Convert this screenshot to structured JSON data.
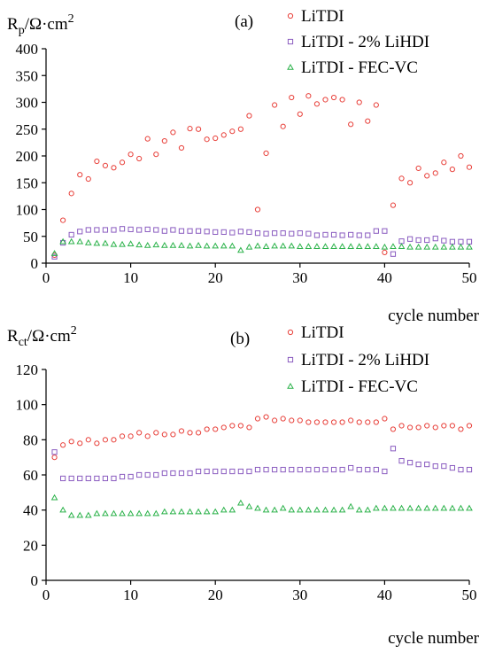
{
  "colors": {
    "LiTDI": "#e8403a",
    "LiTDI - 2% LiHDI": "#8a5cc0",
    "LiTDI - FEC-VC": "#2bb24a"
  },
  "chart_data": [
    {
      "type": "scatter",
      "panel_label": "(a)",
      "ylabel_base": "R",
      "ylabel_sub": "p",
      "ylabel_unit": "/Ω·cm",
      "ylabel_sup": "2",
      "xlabel": "cycle number",
      "xlim": [
        0,
        50
      ],
      "ylim": [
        0,
        400
      ],
      "xticks": [
        0,
        10,
        20,
        30,
        40,
        50
      ],
      "yticks": [
        0,
        50,
        100,
        150,
        200,
        250,
        300,
        350,
        400
      ],
      "series": [
        {
          "name": "LiTDI",
          "marker": "circle",
          "x": [
            1,
            2,
            3,
            4,
            5,
            6,
            7,
            8,
            9,
            10,
            11,
            12,
            13,
            14,
            15,
            16,
            17,
            18,
            19,
            20,
            21,
            22,
            23,
            24,
            25,
            26,
            27,
            28,
            29,
            30,
            31,
            32,
            33,
            34,
            35,
            36,
            37,
            38,
            39,
            40,
            41,
            42,
            43,
            44,
            45,
            46,
            47,
            48,
            49,
            50
          ],
          "y": [
            15,
            80,
            130,
            165,
            157,
            190,
            182,
            178,
            188,
            203,
            195,
            232,
            203,
            228,
            244,
            215,
            251,
            250,
            231,
            233,
            239,
            246,
            250,
            275,
            100,
            205,
            295,
            255,
            309,
            278,
            312,
            297,
            305,
            309,
            305,
            259,
            300,
            265,
            295,
            20,
            108,
            158,
            150,
            177,
            163,
            168,
            188,
            175,
            200,
            179
          ]
        },
        {
          "name": "LiTDI - 2% LiHDI",
          "marker": "square",
          "x": [
            1,
            2,
            3,
            4,
            5,
            6,
            7,
            8,
            9,
            10,
            11,
            12,
            13,
            14,
            15,
            16,
            17,
            18,
            19,
            20,
            21,
            22,
            23,
            24,
            25,
            26,
            27,
            28,
            29,
            30,
            31,
            32,
            33,
            34,
            35,
            36,
            37,
            38,
            39,
            40,
            41,
            42,
            43,
            44,
            45,
            46,
            47,
            48,
            49,
            50
          ],
          "y": [
            12,
            38,
            53,
            59,
            62,
            62,
            62,
            62,
            64,
            63,
            62,
            63,
            62,
            60,
            62,
            60,
            60,
            60,
            59,
            58,
            58,
            57,
            59,
            58,
            56,
            55,
            56,
            56,
            55,
            56,
            55,
            52,
            53,
            53,
            52,
            53,
            52,
            52,
            60,
            60,
            17,
            41,
            45,
            43,
            43,
            46,
            42,
            40,
            40,
            40
          ]
        },
        {
          "name": "LiTDI - FEC-VC",
          "marker": "triangle",
          "x": [
            1,
            2,
            3,
            4,
            5,
            6,
            7,
            8,
            9,
            10,
            11,
            12,
            13,
            14,
            15,
            16,
            17,
            18,
            19,
            20,
            21,
            22,
            23,
            24,
            25,
            26,
            27,
            28,
            29,
            30,
            31,
            32,
            33,
            34,
            35,
            36,
            37,
            38,
            39,
            40,
            41,
            42,
            43,
            44,
            45,
            46,
            47,
            48,
            49,
            50
          ],
          "y": [
            18,
            40,
            40,
            40,
            38,
            37,
            37,
            35,
            35,
            36,
            34,
            33,
            34,
            33,
            33,
            33,
            32,
            33,
            32,
            32,
            32,
            32,
            24,
            30,
            32,
            31,
            32,
            32,
            32,
            31,
            31,
            31,
            31,
            31,
            31,
            31,
            31,
            31,
            31,
            30,
            31,
            31,
            30,
            30,
            30,
            30,
            30,
            30,
            30,
            30
          ]
        }
      ]
    },
    {
      "type": "scatter",
      "panel_label": "(b)",
      "ylabel_base": "R",
      "ylabel_sub": "ct",
      "ylabel_unit": "/Ω·cm",
      "ylabel_sup": "2",
      "xlabel": "cycle number",
      "xlim": [
        0,
        50
      ],
      "ylim": [
        0,
        120
      ],
      "xticks": [
        0,
        10,
        20,
        30,
        40,
        50
      ],
      "yticks": [
        0,
        20,
        40,
        60,
        80,
        100,
        120
      ],
      "series": [
        {
          "name": "LiTDI",
          "marker": "circle",
          "x": [
            1,
            2,
            3,
            4,
            5,
            6,
            7,
            8,
            9,
            10,
            11,
            12,
            13,
            14,
            15,
            16,
            17,
            18,
            19,
            20,
            21,
            22,
            23,
            24,
            25,
            26,
            27,
            28,
            29,
            30,
            31,
            32,
            33,
            34,
            35,
            36,
            37,
            38,
            39,
            40,
            41,
            42,
            43,
            44,
            45,
            46,
            47,
            48,
            49,
            50
          ],
          "y": [
            70,
            77,
            79,
            78,
            80,
            78,
            80,
            80,
            82,
            82,
            84,
            82,
            84,
            83,
            83,
            85,
            84,
            84,
            86,
            86,
            87,
            88,
            88,
            87,
            92,
            93,
            91,
            92,
            91,
            91,
            90,
            90,
            90,
            90,
            90,
            91,
            90,
            90,
            90,
            92,
            86,
            88,
            87,
            87,
            88,
            87,
            88,
            88,
            86,
            88
          ]
        },
        {
          "name": "LiTDI - 2% LiHDI",
          "marker": "square",
          "x": [
            1,
            2,
            3,
            4,
            5,
            6,
            7,
            8,
            9,
            10,
            11,
            12,
            13,
            14,
            15,
            16,
            17,
            18,
            19,
            20,
            21,
            22,
            23,
            24,
            25,
            26,
            27,
            28,
            29,
            30,
            31,
            32,
            33,
            34,
            35,
            36,
            37,
            38,
            39,
            40,
            41,
            42,
            43,
            44,
            45,
            46,
            47,
            48,
            49,
            50
          ],
          "y": [
            73,
            58,
            58,
            58,
            58,
            58,
            58,
            58,
            59,
            59,
            60,
            60,
            60,
            61,
            61,
            61,
            61,
            62,
            62,
            62,
            62,
            62,
            62,
            62,
            63,
            63,
            63,
            63,
            63,
            63,
            63,
            63,
            63,
            63,
            63,
            64,
            63,
            63,
            63,
            62,
            75,
            68,
            67,
            66,
            66,
            65,
            65,
            64,
            63,
            63
          ]
        },
        {
          "name": "LiTDI - FEC-VC",
          "marker": "triangle",
          "x": [
            1,
            2,
            3,
            4,
            5,
            6,
            7,
            8,
            9,
            10,
            11,
            12,
            13,
            14,
            15,
            16,
            17,
            18,
            19,
            20,
            21,
            22,
            23,
            24,
            25,
            26,
            27,
            28,
            29,
            30,
            31,
            32,
            33,
            34,
            35,
            36,
            37,
            38,
            39,
            40,
            41,
            42,
            43,
            44,
            45,
            46,
            47,
            48,
            49,
            50
          ],
          "y": [
            47,
            40,
            37,
            37,
            37,
            38,
            38,
            38,
            38,
            38,
            38,
            38,
            38,
            39,
            39,
            39,
            39,
            39,
            39,
            39,
            40,
            40,
            44,
            42,
            41,
            40,
            40,
            41,
            40,
            40,
            40,
            40,
            40,
            40,
            40,
            42,
            40,
            40,
            41,
            41,
            41,
            41,
            41,
            41,
            41,
            41,
            41,
            41,
            41,
            41
          ]
        }
      ]
    }
  ]
}
